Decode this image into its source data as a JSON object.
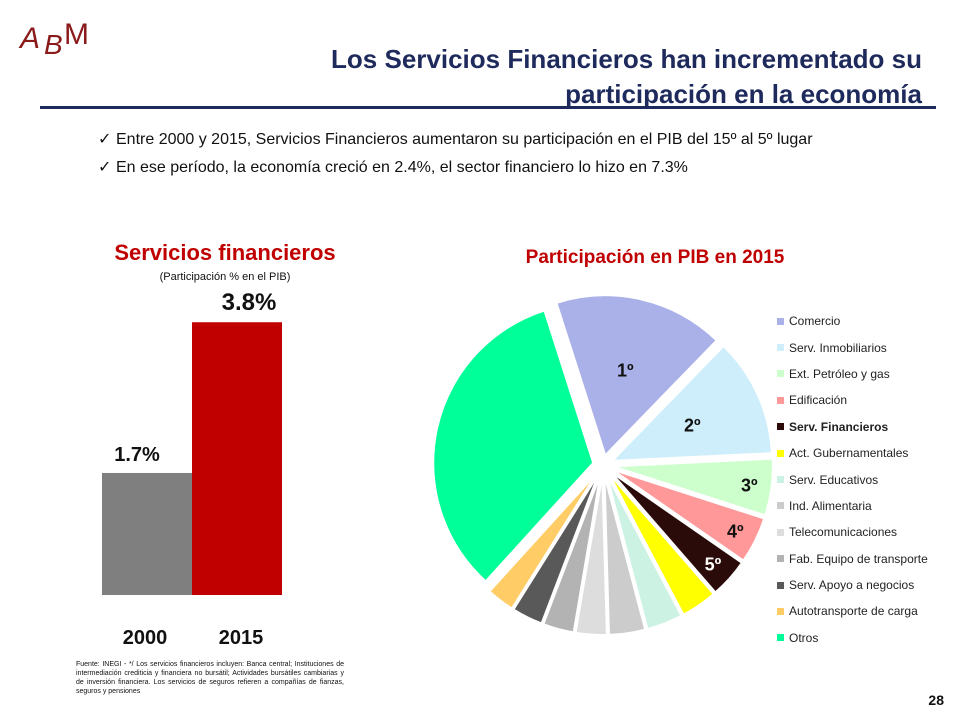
{
  "logo": {
    "text": "ABM",
    "color": "#8b1a1a"
  },
  "header": {
    "title_line1": "Los Servicios Financieros han incrementado su",
    "title_line2": "participación en la economía"
  },
  "bullets": [
    "Entre 2000 y 2015, Servicios Financieros aumentaron su participación en el PIB del 15º al 5º lugar",
    "En ese período, la economía creció en 2.4%, el sector financiero lo hizo en 7.3%"
  ],
  "bullet_icon": "check-icon",
  "page_number": "28",
  "footnote": "Fuente: INEGI - */ Los servicios financieros incluyen: Banca central; Instituciones de intermediación crediticia y financiera no bursátil; Actividades bursátiles cambiarias y de inversión financiera. Los servicios de seguros refieren a compañías de fianzas, seguros y pensiones",
  "colors": {
    "title": "#1f2a5c",
    "accent_red": "#c00000",
    "bar_2000": "#7f7f7f",
    "bar_2015": "#c00000"
  },
  "chart_data": [
    {
      "type": "bar",
      "title": "Servicios financieros",
      "subtitle": "(Participación % en el PIB)",
      "categories": [
        "2000",
        "2015"
      ],
      "values": [
        1.7,
        3.8
      ],
      "data_labels": [
        "1.7%",
        "3.8%"
      ],
      "bar_colors": [
        "#7f7f7f",
        "#c00000"
      ],
      "ylim": [
        0,
        4.5
      ],
      "grid": false
    },
    {
      "type": "pie",
      "title": "Participación  en PIB en 2015",
      "legend_position": "right",
      "slices": [
        {
          "name": "Comercio",
          "value": 16.5,
          "color": "#aab0e8",
          "rank_label": "1º"
        },
        {
          "name": "Serv. Inmobiliarios",
          "value": 11.5,
          "color": "#cdeefa",
          "rank_label": "2º"
        },
        {
          "name": "Ext. Petróleo y gas",
          "value": 5.5,
          "color": "#ccffcc",
          "rank_label": "3º"
        },
        {
          "name": "Edificación",
          "value": 4.5,
          "color": "#ff9999",
          "rank_label": "4º"
        },
        {
          "name": "Serv. Financieros",
          "value": 3.8,
          "color": "#2b0a0a",
          "rank_label": "5º",
          "bold": true
        },
        {
          "name": "Act. Gubernamentales",
          "value": 3.5,
          "color": "#ffff00"
        },
        {
          "name": "Serv. Educativos",
          "value": 3.5,
          "color": "#ccf2e4"
        },
        {
          "name": "Ind. Alimentaria",
          "value": 3.5,
          "color": "#cccccc"
        },
        {
          "name": "Telecomunicaciones",
          "value": 3.0,
          "color": "#dddddd"
        },
        {
          "name": "Fab. Equipo de transporte",
          "value": 3.0,
          "color": "#b3b3b3"
        },
        {
          "name": "Serv. Apoyo a negocios",
          "value": 3.0,
          "color": "#595959"
        },
        {
          "name": "Autotransporte de carga",
          "value": 2.7,
          "color": "#ffcc66"
        },
        {
          "name": "Otros",
          "value": 32.0,
          "color": "#00ff99"
        }
      ]
    }
  ]
}
